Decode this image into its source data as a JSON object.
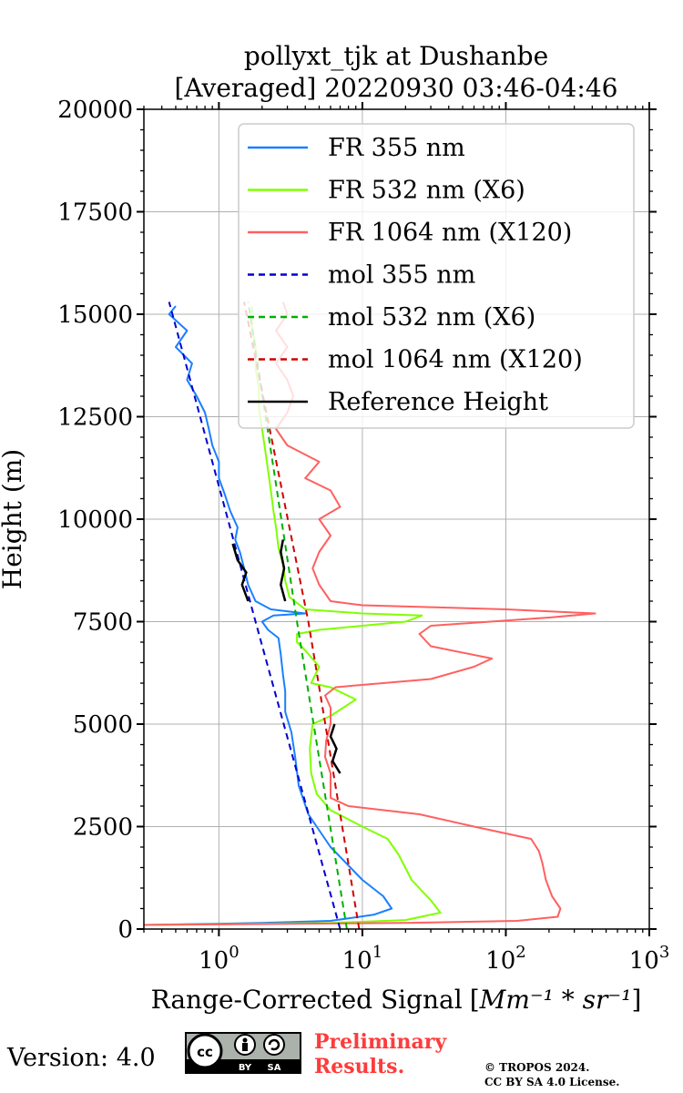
{
  "chart_data": {
    "type": "line",
    "title": "pollyxt_tjk at Dushanbe",
    "subtitle": "[Averaged] 20220930 03:46-04:46",
    "ylabel": "Height (m)",
    "xlabel": "Range-Corrected Signal",
    "xlabel_unit": "Mm⁻¹ * sr⁻¹",
    "x_scale": "log",
    "xlim": [
      0.3,
      1000
    ],
    "ylim": [
      0,
      20000
    ],
    "y_ticks": [
      0,
      2500,
      5000,
      7500,
      10000,
      12500,
      15000,
      17500,
      20000
    ],
    "y_tick_labels": [
      "0",
      "2500",
      "5000",
      "7500",
      "10000",
      "12500",
      "15000",
      "17500",
      "20000"
    ],
    "x_ticks": [
      1,
      10,
      100,
      1000
    ],
    "x_tick_labels": [
      "10",
      "10",
      "10",
      "10"
    ],
    "x_tick_exponents": [
      "0",
      "1",
      "2",
      "3"
    ],
    "grid": true,
    "legend_position": "top-right",
    "series": [
      {
        "name": "FR 355 nm",
        "color": "#1a80ff",
        "style": "solid",
        "points": [
          [
            0.3,
            100
          ],
          [
            2,
            150
          ],
          [
            6,
            200
          ],
          [
            12,
            350
          ],
          [
            16,
            500
          ],
          [
            14,
            800
          ],
          [
            10,
            1200
          ],
          [
            6,
            2000
          ],
          [
            4.2,
            2800
          ],
          [
            3.6,
            3500
          ],
          [
            3.4,
            4200
          ],
          [
            3.2,
            4800
          ],
          [
            2.9,
            5300
          ],
          [
            2.9,
            5800
          ],
          [
            2.8,
            6200
          ],
          [
            2.7,
            6700
          ],
          [
            2.6,
            7100
          ],
          [
            2.2,
            7300
          ],
          [
            2.0,
            7500
          ],
          [
            2.4,
            7650
          ],
          [
            4.0,
            7700
          ],
          [
            2.3,
            7800
          ],
          [
            1.8,
            8000
          ],
          [
            1.6,
            8400
          ],
          [
            1.5,
            8800
          ],
          [
            1.4,
            9200
          ],
          [
            1.3,
            9500
          ],
          [
            1.35,
            9800
          ],
          [
            1.2,
            10200
          ],
          [
            1.1,
            10600
          ],
          [
            1.0,
            11000
          ],
          [
            1.0,
            11400
          ],
          [
            0.9,
            11800
          ],
          [
            0.85,
            12200
          ],
          [
            0.8,
            12600
          ],
          [
            0.7,
            13000
          ],
          [
            0.6,
            13400
          ],
          [
            0.65,
            13800
          ],
          [
            0.5,
            14200
          ],
          [
            0.6,
            14600
          ],
          [
            0.45,
            15000
          ],
          [
            0.5,
            15200
          ]
        ]
      },
      {
        "name": "FR 532 nm (X6)",
        "color": "#80ff00",
        "style": "solid",
        "points": [
          [
            0.3,
            100
          ],
          [
            6,
            150
          ],
          [
            20,
            220
          ],
          [
            35,
            400
          ],
          [
            30,
            700
          ],
          [
            22,
            1200
          ],
          [
            18,
            1800
          ],
          [
            15,
            2200
          ],
          [
            10,
            2500
          ],
          [
            6,
            2900
          ],
          [
            4.8,
            3300
          ],
          [
            4.4,
            3800
          ],
          [
            4.3,
            4400
          ],
          [
            4.5,
            5000
          ],
          [
            6,
            5200
          ],
          [
            9,
            5600
          ],
          [
            6,
            5900
          ],
          [
            4.4,
            6000
          ],
          [
            5,
            6400
          ],
          [
            4.0,
            6800
          ],
          [
            3.5,
            7000
          ],
          [
            3.5,
            7200
          ],
          [
            5,
            7300
          ],
          [
            20,
            7500
          ],
          [
            26,
            7650
          ],
          [
            10,
            7700
          ],
          [
            4,
            7800
          ],
          [
            3.1,
            8100
          ],
          [
            2.9,
            8500
          ],
          [
            2.8,
            8900
          ],
          [
            2.6,
            9300
          ],
          [
            2.5,
            9800
          ],
          [
            2.4,
            10200
          ],
          [
            2.3,
            10700
          ],
          [
            2.2,
            11200
          ],
          [
            2.1,
            11700
          ],
          [
            2.0,
            12200
          ],
          [
            1.9,
            12700
          ],
          [
            1.9,
            13200
          ],
          [
            1.8,
            13700
          ],
          [
            1.8,
            14200
          ],
          [
            1.7,
            14700
          ],
          [
            1.7,
            15200
          ]
        ]
      },
      {
        "name": "FR 1064 nm (X120)",
        "color": "#ff6060",
        "style": "solid",
        "points": [
          [
            0.3,
            100
          ],
          [
            20,
            150
          ],
          [
            120,
            200
          ],
          [
            230,
            300
          ],
          [
            240,
            500
          ],
          [
            210,
            800
          ],
          [
            190,
            1200
          ],
          [
            180,
            1600
          ],
          [
            170,
            1900
          ],
          [
            150,
            2200
          ],
          [
            60,
            2500
          ],
          [
            25,
            2800
          ],
          [
            8,
            3000
          ],
          [
            6,
            3200
          ],
          [
            6,
            3800
          ],
          [
            5.5,
            4200
          ],
          [
            5.6,
            4600
          ],
          [
            6,
            5000
          ],
          [
            6,
            5400
          ],
          [
            5.5,
            5700
          ],
          [
            6.5,
            5900
          ],
          [
            30,
            6100
          ],
          [
            60,
            6400
          ],
          [
            80,
            6600
          ],
          [
            30,
            6900
          ],
          [
            25,
            7200
          ],
          [
            30,
            7400
          ],
          [
            200,
            7600
          ],
          [
            420,
            7700
          ],
          [
            100,
            7800
          ],
          [
            10,
            7900
          ],
          [
            6,
            8000
          ],
          [
            5,
            8400
          ],
          [
            4.5,
            8800
          ],
          [
            5,
            9200
          ],
          [
            6,
            9600
          ],
          [
            5,
            10000
          ],
          [
            7,
            10300
          ],
          [
            6,
            10700
          ],
          [
            4,
            11000
          ],
          [
            5,
            11400
          ],
          [
            3,
            11800
          ],
          [
            2.5,
            12200
          ],
          [
            3,
            12600
          ],
          [
            3.3,
            13000
          ],
          [
            3,
            13400
          ],
          [
            2.5,
            13800
          ],
          [
            3,
            14200
          ],
          [
            2.5,
            14600
          ],
          [
            3,
            15000
          ],
          [
            2.8,
            15300
          ]
        ]
      },
      {
        "name": "mol 355 nm",
        "color": "#0000d0",
        "style": "dashed",
        "points": [
          [
            7,
            0
          ],
          [
            1.8,
            7500
          ],
          [
            0.45,
            15300
          ]
        ]
      },
      {
        "name": "mol 532 nm (X6)",
        "color": "#00b000",
        "style": "dashed",
        "points": [
          [
            7.8,
            0
          ],
          [
            3.5,
            7500
          ],
          [
            1.6,
            15300
          ]
        ]
      },
      {
        "name": "mol 1064 nm (X120)",
        "color": "#d00000",
        "style": "dashed",
        "points": [
          [
            9.5,
            0
          ],
          [
            4.2,
            7500
          ],
          [
            1.5,
            15300
          ]
        ]
      },
      {
        "name": "Reference Height",
        "color": "#000000",
        "style": "solid",
        "segments": [
          [
            [
              1.6,
              8000
            ],
            [
              1.45,
              8400
            ],
            [
              1.55,
              8700
            ],
            [
              1.35,
              9000
            ],
            [
              1.25,
              9400
            ]
          ],
          [
            [
              2.9,
              8000
            ],
            [
              2.7,
              8400
            ],
            [
              2.85,
              8800
            ],
            [
              2.7,
              9200
            ],
            [
              2.8,
              9500
            ]
          ],
          [
            [
              7,
              3800
            ],
            [
              6.2,
              4100
            ],
            [
              6.6,
              4400
            ],
            [
              6,
              4700
            ],
            [
              6.4,
              5000
            ]
          ]
        ]
      }
    ]
  },
  "footer": {
    "version_label": "Version: 4.0",
    "cc_badge_labels": [
      "BY",
      "SA"
    ],
    "preliminary_line1": "Preliminary",
    "preliminary_line2": "Results.",
    "copyright_line1": "© TROPOS 2024.",
    "copyright_line2": "CC BY SA 4.0 License."
  }
}
